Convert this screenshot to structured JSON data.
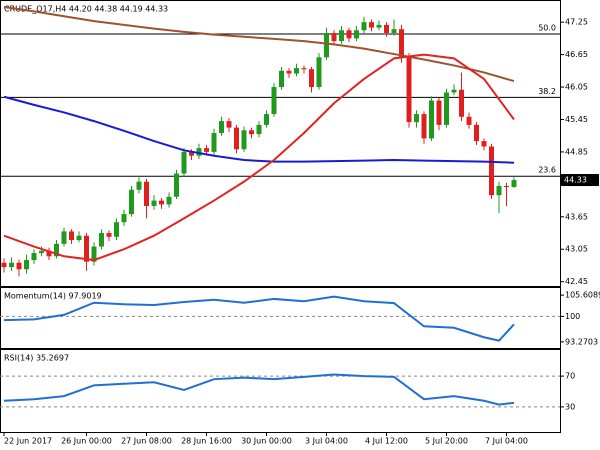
{
  "chart_data": [
    {
      "type": "candlestick",
      "title": "CRUDE_Q17,H4  44.20 44.38 44.19 44.33",
      "up_color": "#1f9a1f",
      "down_color": "#e02020",
      "ohlc": [
        [
          42.8,
          42.88,
          42.62,
          42.72
        ],
        [
          42.72,
          42.9,
          42.65,
          42.8
        ],
        [
          42.8,
          42.86,
          42.55,
          42.68
        ],
        [
          42.68,
          42.95,
          42.6,
          42.85
        ],
        [
          42.85,
          43.05,
          42.78,
          42.98
        ],
        [
          42.98,
          43.1,
          42.92,
          43.02
        ],
        [
          43.02,
          43.08,
          42.85,
          42.92
        ],
        [
          42.92,
          43.22,
          42.88,
          43.15
        ],
        [
          43.15,
          43.45,
          43.1,
          43.38
        ],
        [
          43.38,
          43.42,
          43.15,
          43.22
        ],
        [
          43.22,
          43.38,
          43.18,
          43.3
        ],
        [
          43.3,
          43.35,
          42.65,
          42.82
        ],
        [
          42.82,
          43.18,
          42.75,
          43.1
        ],
        [
          43.1,
          43.42,
          43.05,
          43.35
        ],
        [
          43.35,
          43.4,
          43.2,
          43.28
        ],
        [
          43.28,
          43.62,
          43.22,
          43.55
        ],
        [
          43.55,
          43.78,
          43.48,
          43.7
        ],
        [
          43.7,
          44.22,
          43.65,
          44.15
        ],
        [
          44.15,
          44.38,
          44.08,
          44.3
        ],
        [
          44.3,
          44.35,
          43.62,
          43.85
        ],
        [
          43.85,
          44.05,
          43.78,
          43.95
        ],
        [
          43.95,
          44.0,
          43.8,
          43.88
        ],
        [
          43.88,
          44.1,
          43.82,
          44.02
        ],
        [
          44.02,
          44.52,
          43.98,
          44.45
        ],
        [
          44.45,
          44.92,
          44.4,
          44.85
        ],
        [
          44.85,
          44.9,
          44.7,
          44.78
        ],
        [
          44.78,
          45.0,
          44.72,
          44.92
        ],
        [
          44.92,
          44.98,
          44.78,
          44.85
        ],
        [
          44.85,
          45.28,
          44.8,
          45.2
        ],
        [
          45.2,
          45.5,
          45.15,
          45.42
        ],
        [
          45.42,
          45.48,
          45.22,
          45.3
        ],
        [
          45.3,
          45.35,
          44.82,
          44.9
        ],
        [
          44.9,
          45.32,
          44.85,
          45.25
        ],
        [
          45.25,
          45.3,
          45.1,
          45.18
        ],
        [
          45.18,
          45.42,
          45.12,
          45.35
        ],
        [
          45.35,
          45.62,
          45.3,
          45.55
        ],
        [
          45.55,
          46.12,
          45.5,
          46.05
        ],
        [
          46.05,
          46.42,
          46.0,
          46.35
        ],
        [
          46.35,
          46.4,
          46.22,
          46.3
        ],
        [
          46.3,
          46.48,
          46.25,
          46.4
        ],
        [
          46.4,
          46.45,
          46.3,
          46.38
        ],
        [
          46.38,
          46.42,
          45.95,
          46.05
        ],
        [
          46.05,
          46.68,
          46.0,
          46.6
        ],
        [
          46.6,
          47.15,
          46.55,
          47.05
        ],
        [
          47.05,
          47.1,
          46.82,
          46.9
        ],
        [
          46.9,
          47.18,
          46.85,
          47.1
        ],
        [
          47.1,
          47.15,
          46.88,
          46.95
        ],
        [
          46.95,
          47.18,
          46.9,
          47.1
        ],
        [
          47.1,
          47.35,
          47.05,
          47.25
        ],
        [
          47.25,
          47.3,
          47.08,
          47.15
        ],
        [
          47.15,
          47.28,
          47.1,
          47.2
        ],
        [
          47.2,
          47.25,
          46.98,
          47.05
        ],
        [
          47.05,
          47.3,
          47.0,
          47.12
        ],
        [
          47.12,
          47.2,
          46.5,
          46.6
        ],
        [
          46.6,
          46.68,
          45.3,
          45.4
        ],
        [
          45.4,
          45.62,
          45.3,
          45.55
        ],
        [
          45.55,
          45.6,
          45.0,
          45.1
        ],
        [
          45.1,
          45.88,
          45.05,
          45.8
        ],
        [
          45.8,
          45.85,
          45.25,
          45.35
        ],
        [
          45.35,
          46.02,
          45.3,
          45.95
        ],
        [
          45.95,
          46.1,
          45.9,
          46.0
        ],
        [
          46.0,
          46.32,
          45.42,
          45.5
        ],
        [
          45.5,
          45.58,
          45.28,
          45.35
        ],
        [
          45.35,
          45.4,
          44.98,
          45.05
        ],
        [
          45.05,
          45.1,
          44.88,
          44.95
        ],
        [
          44.95,
          45.0,
          43.98,
          44.05
        ],
        [
          44.05,
          44.3,
          43.72,
          44.22
        ],
        [
          44.22,
          44.28,
          43.85,
          44.2
        ],
        [
          44.2,
          44.38,
          44.19,
          44.33
        ]
      ],
      "lines": [
        {
          "color": "#a0522d",
          "x": [
            0,
            4,
            8,
            12,
            16,
            20,
            24,
            28,
            32,
            36,
            40,
            44,
            48,
            52,
            56,
            60,
            64,
            68
          ],
          "values": [
            47.53,
            47.45,
            47.36,
            47.27,
            47.2,
            47.13,
            47.07,
            47.02,
            46.98,
            46.94,
            46.9,
            46.84,
            46.76,
            46.66,
            46.56,
            46.45,
            46.32,
            46.16
          ]
        },
        {
          "color": "#1a1ad6",
          "x": [
            0,
            4,
            8,
            12,
            16,
            20,
            24,
            28,
            32,
            36,
            40,
            44,
            48,
            52,
            56,
            60,
            64,
            68
          ],
          "values": [
            45.87,
            45.72,
            45.58,
            45.42,
            45.24,
            45.05,
            44.88,
            44.78,
            44.7,
            44.67,
            44.67,
            44.68,
            44.69,
            44.7,
            44.69,
            44.68,
            44.67,
            44.65
          ]
        },
        {
          "color": "#e52222",
          "x": [
            0,
            4,
            8,
            12,
            16,
            20,
            24,
            28,
            32,
            36,
            40,
            44,
            48,
            52,
            56,
            60,
            64,
            68
          ],
          "values": [
            43.3,
            43.1,
            42.92,
            42.85,
            43.05,
            43.3,
            43.62,
            43.95,
            44.3,
            44.7,
            45.2,
            45.75,
            46.2,
            46.58,
            46.65,
            46.58,
            46.2,
            45.45
          ]
        }
      ],
      "fib_levels": [
        {
          "value": 47.03,
          "label": "50.0"
        },
        {
          "value": 45.86,
          "label": "38.2"
        },
        {
          "value": 44.4,
          "label": "23.6"
        }
      ],
      "ylim": [
        42.37,
        47.66
      ],
      "yticks": [
        47.25,
        46.65,
        46.05,
        45.45,
        44.85,
        43.65,
        43.05,
        42.45
      ]
    },
    {
      "type": "line",
      "title": "Momentum(14) 97.9019",
      "series": [
        {
          "color": "#1f6fd6",
          "x": [
            0,
            4,
            8,
            12,
            16,
            20,
            24,
            28,
            32,
            36,
            40,
            44,
            48,
            52,
            56,
            60,
            64,
            66,
            68
          ],
          "values": [
            99.0,
            99.2,
            100.4,
            103.6,
            103.2,
            103.0,
            103.8,
            104.4,
            103.6,
            104.6,
            104.0,
            105.2,
            104.0,
            103.5,
            97.4,
            97.0,
            94.5,
            93.6,
            97.9019
          ]
        }
      ],
      "ylim": [
        91.66,
        107.75
      ],
      "yticks": [
        93.2703,
        100,
        105.6089
      ],
      "levels": [
        100
      ]
    },
    {
      "type": "line",
      "title": "RSI(14) 35.2697",
      "series": [
        {
          "color": "#1f6fd6",
          "x": [
            0,
            4,
            8,
            12,
            16,
            20,
            24,
            28,
            32,
            36,
            40,
            44,
            48,
            52,
            56,
            60,
            64,
            66,
            68
          ],
          "values": [
            38,
            40,
            44,
            58,
            60,
            62,
            52,
            66,
            68,
            66,
            69,
            72,
            70,
            69,
            40,
            44,
            38,
            33,
            35.2697
          ]
        }
      ],
      "ylim": [
        0,
        100
      ],
      "yticks": [
        30,
        70
      ],
      "levels": [
        30,
        70
      ],
      "xticks": [
        {
          "value": 0,
          "label": "22 Jun 2017"
        },
        {
          "value": 11,
          "label": "26 Jun 00:00"
        },
        {
          "value": 19,
          "label": "27 Jun 08:00"
        },
        {
          "value": 27,
          "label": "28 Jun 16:00"
        },
        {
          "value": 35,
          "label": "30 Jun 00:00"
        },
        {
          "value": 43,
          "label": "3 Jul 04:00"
        },
        {
          "value": 51,
          "label": "4 Jul 12:00"
        },
        {
          "value": 59,
          "label": "5 Jul 20:00"
        },
        {
          "value": 67,
          "label": "7 Jul 04:00"
        }
      ]
    }
  ]
}
